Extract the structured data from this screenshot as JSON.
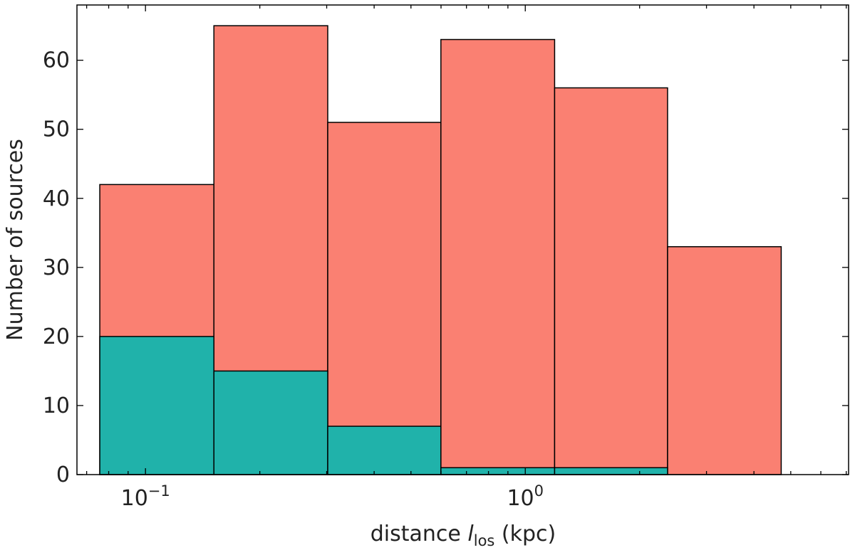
{
  "chart_data": {
    "type": "bar",
    "xscale": "log",
    "xlabel": "distance",
    "xlabel_symbol": "l",
    "xlabel_subscript": "los",
    "xlabel_unit": "(kpc)",
    "ylabel": "Number of sources",
    "ylim": [
      0,
      68
    ],
    "xlim": [
      0.066,
      7.1
    ],
    "grid": false,
    "ticks_direction": "in",
    "bin_edges": [
      0.0758,
      0.1514,
      0.3019,
      0.5995,
      1.1947,
      2.3694,
      4.7188
    ],
    "series": [
      {
        "values": [
          42,
          65,
          51,
          63,
          56,
          33
        ],
        "color": "#FA8072"
      },
      {
        "values": [
          20,
          15,
          7,
          1,
          1,
          0
        ],
        "color": "#20B2AA"
      }
    ],
    "y_ticks": [
      {
        "value": 0,
        "label": "0"
      },
      {
        "value": 10,
        "label": "10"
      },
      {
        "value": 20,
        "label": "20"
      },
      {
        "value": 30,
        "label": "30"
      },
      {
        "value": 40,
        "label": "40"
      },
      {
        "value": 50,
        "label": "50"
      },
      {
        "value": 60,
        "label": "60"
      }
    ],
    "x_ticks": [
      {
        "value": 0.1,
        "base": "10",
        "exponent": "−1"
      },
      {
        "value": 1,
        "base": "10",
        "exponent": "0"
      }
    ]
  }
}
